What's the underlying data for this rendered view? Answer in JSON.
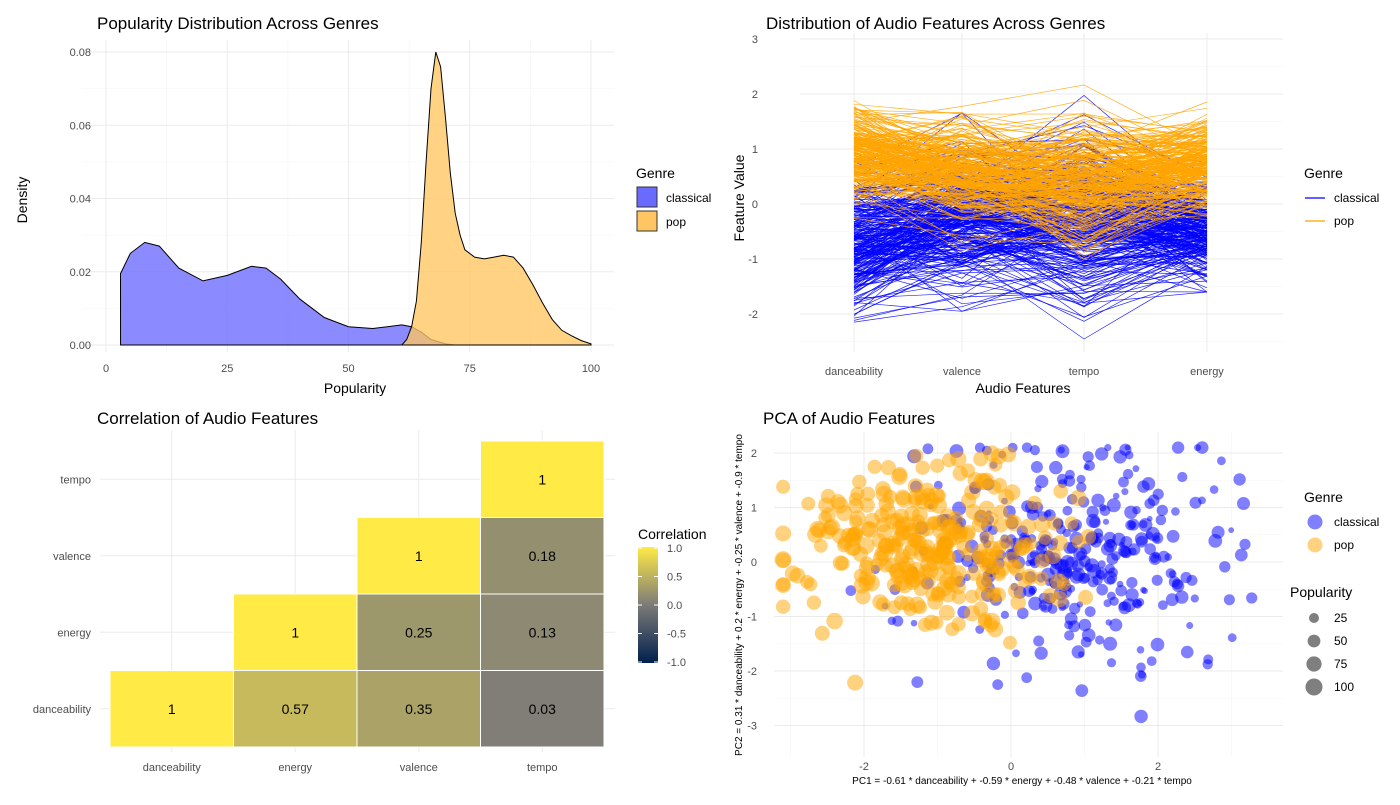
{
  "chart_data": [
    {
      "id": "density",
      "type": "area",
      "title": "Popularity Distribution Across Genres",
      "xlabel": "Popularity",
      "ylabel": "Density",
      "xlim": [
        0,
        100
      ],
      "ylim": [
        0,
        0.08
      ],
      "xticks": [
        0,
        25,
        50,
        75,
        100
      ],
      "yticks": [
        0.0,
        0.02,
        0.04,
        0.06,
        0.08
      ],
      "ytick_labels": [
        "0.00",
        "0.02",
        "0.04",
        "0.06",
        "0.08"
      ],
      "legend": {
        "title": "Genre",
        "position": "right"
      },
      "series": [
        {
          "name": "classical",
          "color": "#6a6aff",
          "x": [
            3,
            5,
            8,
            11,
            15,
            20,
            25,
            30,
            33,
            36,
            40,
            45,
            50,
            55,
            58,
            61,
            63,
            65,
            67,
            70,
            72
          ],
          "y": [
            0.0195,
            0.025,
            0.028,
            0.027,
            0.021,
            0.0175,
            0.019,
            0.0215,
            0.021,
            0.018,
            0.0125,
            0.0075,
            0.005,
            0.0045,
            0.005,
            0.0055,
            0.005,
            0.0035,
            0.0015,
            0.0003,
            0
          ]
        },
        {
          "name": "pop",
          "color": "#ffc562",
          "x": [
            61,
            62,
            63,
            64,
            65,
            66,
            67,
            68,
            69,
            70,
            71,
            72,
            73,
            74,
            76,
            78,
            80,
            82,
            84,
            86,
            88,
            90,
            92,
            94,
            96,
            98,
            100
          ],
          "y": [
            0,
            0.0015,
            0.005,
            0.012,
            0.028,
            0.05,
            0.07,
            0.08,
            0.076,
            0.062,
            0.047,
            0.036,
            0.03,
            0.026,
            0.024,
            0.0235,
            0.024,
            0.0245,
            0.024,
            0.021,
            0.0165,
            0.0115,
            0.007,
            0.004,
            0.0025,
            0.0012,
            0.0003
          ]
        }
      ]
    },
    {
      "id": "parallel",
      "type": "line",
      "title": "Distribution of Audio Features Across Genres",
      "xlabel": "Audio Features",
      "ylabel": "Feature Value",
      "categories": [
        "danceability",
        "valence",
        "tempo",
        "energy"
      ],
      "ylim": [
        -2.6,
        3
      ],
      "yticks": [
        -2,
        -1,
        0,
        1,
        2,
        3
      ],
      "legend": {
        "title": "Genre",
        "position": "right"
      },
      "series": [
        {
          "name": "classical",
          "color": "#0000ff",
          "mean": [
            -0.7,
            -0.3,
            -0.3,
            -0.5
          ],
          "spread": [
            0.75,
            0.8,
            0.9,
            0.55
          ]
        },
        {
          "name": "pop",
          "color": "#ffa500",
          "mean": [
            0.9,
            0.6,
            0.4,
            0.7
          ],
          "spread": [
            0.55,
            0.5,
            0.7,
            0.5
          ]
        }
      ]
    },
    {
      "id": "heatmap",
      "type": "heatmap",
      "title": "Correlation of Audio Features",
      "categories": [
        "danceability",
        "energy",
        "valence",
        "tempo"
      ],
      "values": [
        [
          1,
          null,
          null,
          null
        ],
        [
          0.57,
          1,
          null,
          null
        ],
        [
          0.35,
          0.25,
          1,
          null
        ],
        [
          0.03,
          0.13,
          0.18,
          1
        ]
      ],
      "cell_labels": [
        [
          "1",
          "",
          "",
          ""
        ],
        [
          "0.57",
          "1",
          "",
          ""
        ],
        [
          "0.35",
          "0.25",
          "1",
          ""
        ],
        [
          "0.03",
          "0.13",
          "0.18",
          "1"
        ]
      ],
      "legend": {
        "title": "Correlation",
        "position": "right",
        "range": [
          -1,
          1
        ],
        "ticks": [
          "1.0",
          "0.5",
          "0.0",
          "-0.5",
          "-1.0"
        ],
        "tick_values": [
          1,
          0.5,
          0,
          -0.5,
          -1
        ]
      },
      "colors": {
        "low": "#00204d",
        "mid": "#7c7b78",
        "high": "#ffea46"
      }
    },
    {
      "id": "pca",
      "type": "scatter",
      "title": "PCA of Audio Features",
      "xlabel": "PC1 =  -0.61  *  danceability + -0.59  *  energy + -0.48  *  valence + -0.21  *  tempo",
      "ylabel": "PC2 =  0.31  *  danceability + 0.2  *  energy + -0.25  *  valence + -0.9  *  tempo",
      "xlim": [
        -3.3,
        3.7
      ],
      "ylim": [
        -3.55,
        2.35
      ],
      "xticks": [
        -2,
        0,
        2
      ],
      "yticks": [
        -3,
        -2,
        -1,
        0,
        1,
        2
      ],
      "legend": {
        "title": "Genre",
        "position": "right"
      },
      "size_legend": {
        "title": "Popularity",
        "values": [
          25,
          50,
          75,
          100
        ]
      },
      "series": [
        {
          "name": "classical",
          "color": "#0000ff",
          "center": [
            0.9,
            0.2
          ],
          "spread": [
            1.0,
            0.95
          ],
          "count": 340
        },
        {
          "name": "pop",
          "color": "#ffa500",
          "center": [
            -1.1,
            0.3
          ],
          "spread": [
            0.85,
            0.75
          ],
          "count": 310
        }
      ]
    }
  ]
}
